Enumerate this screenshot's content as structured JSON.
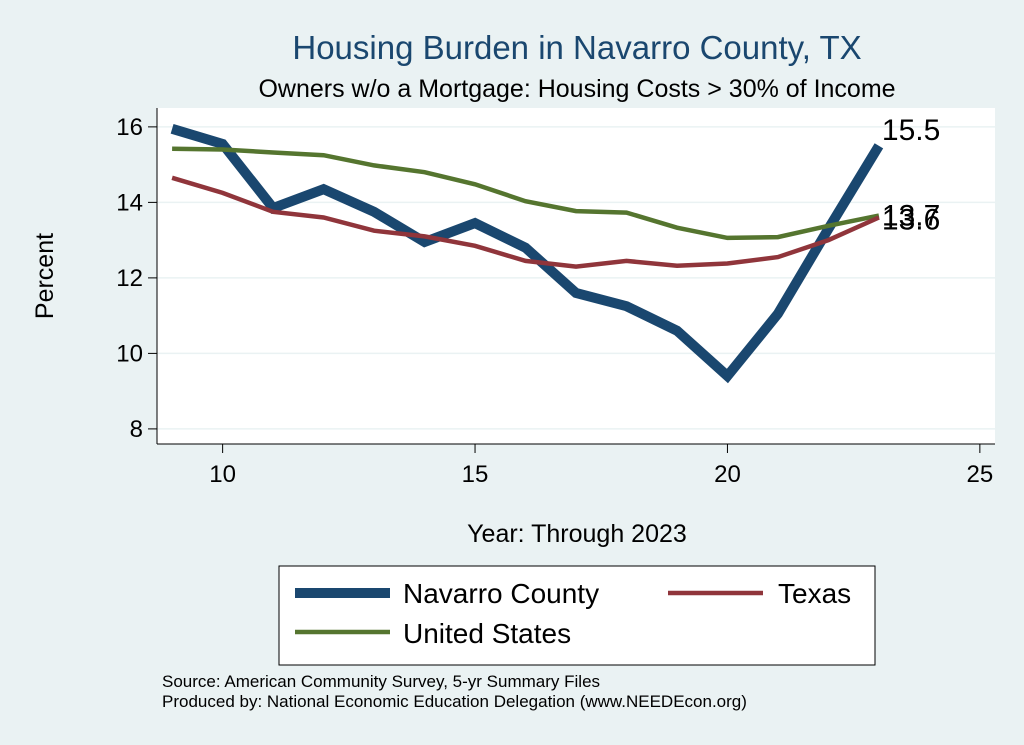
{
  "chart_data": {
    "type": "line",
    "title": "Housing Burden in Navarro County, TX",
    "subtitle": "Owners w/o a Mortgage: Housing Costs > 30% of Income",
    "xlabel": "Year: Through 2023",
    "ylabel": "Percent",
    "xlim": [
      8.7,
      25.3
    ],
    "ylim": [
      7.6,
      16.5
    ],
    "x_ticks": [
      10,
      15,
      20,
      25
    ],
    "y_ticks": [
      8,
      10,
      12,
      14,
      16
    ],
    "grid": true,
    "legend_position": "bottom",
    "x": [
      9,
      10,
      11,
      12,
      13,
      14,
      15,
      16,
      17,
      18,
      19,
      20,
      21,
      22,
      23
    ],
    "series": [
      {
        "name": "Navarro County",
        "color": "#1a476f",
        "values": [
          15.95,
          15.55,
          13.85,
          14.35,
          13.75,
          12.95,
          13.45,
          12.8,
          11.6,
          11.25,
          10.6,
          9.4,
          11.05,
          13.3,
          15.5
        ],
        "end_label": "15.5"
      },
      {
        "name": "Texas",
        "color": "#90353b",
        "values": [
          14.65,
          14.25,
          13.75,
          13.6,
          13.25,
          13.1,
          12.85,
          12.45,
          12.3,
          12.45,
          12.32,
          12.38,
          12.55,
          13.0,
          13.6
        ],
        "end_label": "13.6"
      },
      {
        "name": "United States",
        "color": "#55752f",
        "values": [
          15.42,
          15.4,
          15.32,
          15.25,
          14.98,
          14.8,
          14.48,
          14.03,
          13.77,
          13.73,
          13.33,
          13.06,
          13.08,
          13.38,
          13.65
        ],
        "end_label": "13.7"
      }
    ]
  },
  "source": {
    "line1": "Source: American Community Survey, 5-yr Summary Files",
    "line2": "Produced by: National Economic Education Delegation (www.NEEDEcon.org)"
  }
}
